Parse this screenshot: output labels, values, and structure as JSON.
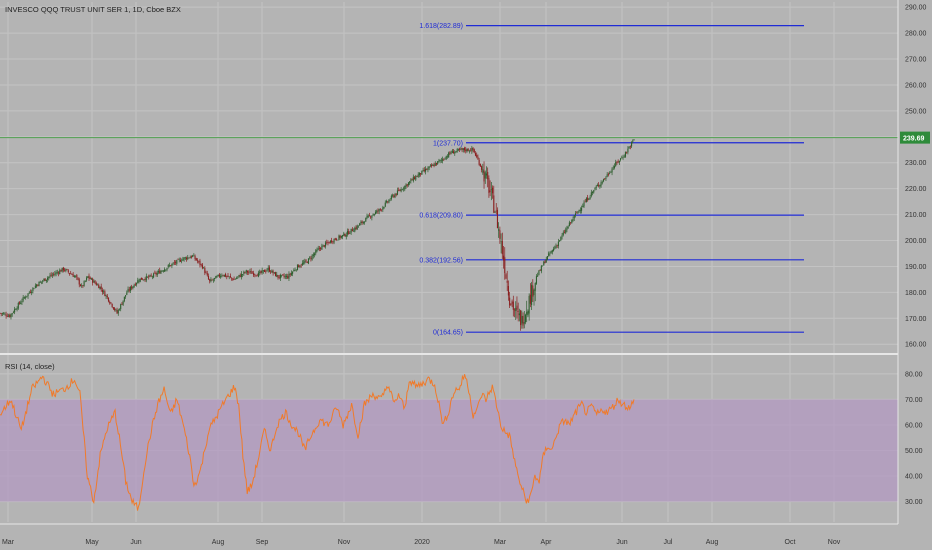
{
  "header": {
    "symbol_title": "INVESCO QQQ TRUST UNIT SER 1, 1D, Cboe BZX"
  },
  "colors": {
    "background": "#b4b4b4",
    "grid": "#c3c3c3",
    "candle_up": "#2e5e2e",
    "candle_down": "#8a1f1f",
    "fib_line": "#1f2bd6",
    "last_price_line": "#4f9f4f",
    "last_price_badge": "#2e8b3a",
    "rsi_line": "#f07a2a",
    "rsi_band": "#b39ac2",
    "axis_text": "#333333"
  },
  "chart_data": [
    {
      "type": "candlestick",
      "title": "INVESCO QQQ TRUST UNIT SER 1, 1D, Cboe BZX",
      "ylim": [
        157,
        292
      ],
      "y_ticks": [
        "160.00",
        "170.00",
        "180.00",
        "190.00",
        "200.00",
        "210.00",
        "220.00",
        "230.00",
        "240.00",
        "250.00",
        "260.00",
        "270.00",
        "280.00",
        "290.00"
      ],
      "y_tick_values": [
        160,
        170,
        180,
        190,
        200,
        210,
        220,
        230,
        240,
        250,
        260,
        270,
        280,
        290
      ],
      "x_ticks": [
        "Mar",
        "May",
        "Jun",
        "Aug",
        "Sep",
        "Nov",
        "2020",
        "Mar",
        "Apr",
        "Jun",
        "Jul",
        "Aug",
        "Oct",
        "Nov"
      ],
      "last_price": 239.69,
      "last_price_label": "239.69",
      "fib_levels": [
        {
          "label": "1.618(282.89)",
          "value": 282.89
        },
        {
          "label": "1(237.70)",
          "value": 237.7
        },
        {
          "label": "0.618(209.80)",
          "value": 209.8
        },
        {
          "label": "0.382(192.56)",
          "value": 192.56
        },
        {
          "label": "0(164.65)",
          "value": 164.65
        }
      ],
      "close_keypoints_by_bar": [
        [
          0,
          172
        ],
        [
          8,
          171
        ],
        [
          18,
          177
        ],
        [
          30,
          183
        ],
        [
          40,
          186
        ],
        [
          52,
          189
        ],
        [
          62,
          186
        ],
        [
          67,
          182
        ],
        [
          72,
          186
        ],
        [
          82,
          182
        ],
        [
          88,
          178
        ],
        [
          96,
          172
        ],
        [
          104,
          180
        ],
        [
          114,
          185
        ],
        [
          124,
          186
        ],
        [
          138,
          190
        ],
        [
          150,
          193
        ],
        [
          158,
          194
        ],
        [
          166,
          190
        ],
        [
          172,
          184
        ],
        [
          182,
          187
        ],
        [
          192,
          185
        ],
        [
          202,
          188
        ],
        [
          212,
          187
        ],
        [
          220,
          189
        ],
        [
          228,
          186
        ],
        [
          236,
          186
        ],
        [
          244,
          190
        ],
        [
          252,
          192
        ],
        [
          262,
          197
        ],
        [
          272,
          200
        ],
        [
          282,
          202
        ],
        [
          292,
          205
        ],
        [
          302,
          209
        ],
        [
          312,
          212
        ],
        [
          322,
          217
        ],
        [
          332,
          221
        ],
        [
          342,
          225
        ],
        [
          352,
          228
        ],
        [
          362,
          231
        ],
        [
          370,
          234
        ],
        [
          380,
          235
        ],
        [
          388,
          235
        ],
        [
          393,
          230
        ],
        [
          400,
          222
        ],
        [
          406,
          212
        ],
        [
          412,
          196
        ],
        [
          418,
          178
        ],
        [
          423,
          172
        ],
        [
          428,
          169
        ],
        [
          434,
          177
        ],
        [
          440,
          186
        ],
        [
          448,
          193
        ],
        [
          456,
          198
        ],
        [
          464,
          204
        ],
        [
          472,
          210
        ],
        [
          480,
          215
        ],
        [
          488,
          220
        ],
        [
          496,
          224
        ],
        [
          504,
          229
        ],
        [
          512,
          233
        ],
        [
          520,
          239
        ]
      ]
    },
    {
      "type": "line",
      "title": "RSI (14, close)",
      "ylim": [
        22,
        87
      ],
      "band": [
        30,
        70
      ],
      "y_ticks": [
        "30.00",
        "40.00",
        "50.00",
        "60.00",
        "70.00",
        "80.00"
      ],
      "y_tick_values": [
        30,
        40,
        50,
        60,
        70,
        80
      ],
      "keypoints_by_bar": [
        [
          0,
          64
        ],
        [
          10,
          70
        ],
        [
          20,
          58
        ],
        [
          30,
          74
        ],
        [
          40,
          79
        ],
        [
          50,
          72
        ],
        [
          60,
          74
        ],
        [
          70,
          78
        ],
        [
          75,
          72
        ],
        [
          82,
          40
        ],
        [
          88,
          30
        ],
        [
          94,
          48
        ],
        [
          100,
          58
        ],
        [
          108,
          65
        ],
        [
          112,
          55
        ],
        [
          118,
          38
        ],
        [
          124,
          30
        ],
        [
          130,
          27
        ],
        [
          136,
          45
        ],
        [
          142,
          58
        ],
        [
          148,
          68
        ],
        [
          154,
          74
        ],
        [
          160,
          64
        ],
        [
          166,
          70
        ],
        [
          172,
          60
        ],
        [
          178,
          48
        ],
        [
          182,
          36
        ],
        [
          188,
          42
        ],
        [
          196,
          58
        ],
        [
          204,
          64
        ],
        [
          212,
          70
        ],
        [
          220,
          75
        ],
        [
          224,
          68
        ],
        [
          228,
          48
        ],
        [
          232,
          34
        ],
        [
          236,
          36
        ],
        [
          242,
          46
        ],
        [
          248,
          58
        ],
        [
          254,
          50
        ],
        [
          260,
          60
        ],
        [
          268,
          65
        ],
        [
          274,
          60
        ],
        [
          280,
          57
        ],
        [
          286,
          50
        ],
        [
          292,
          56
        ],
        [
          300,
          62
        ],
        [
          308,
          60
        ],
        [
          316,
          67
        ],
        [
          322,
          60
        ],
        [
          330,
          68
        ],
        [
          336,
          56
        ],
        [
          342,
          68
        ],
        [
          350,
          72
        ],
        [
          358,
          70
        ],
        [
          364,
          76
        ],
        [
          370,
          68
        ],
        [
          374,
          72
        ],
        [
          380,
          66
        ],
        [
          384,
          78
        ],
        [
          390,
          75
        ],
        [
          396,
          76
        ],
        [
          402,
          78
        ],
        [
          408,
          76
        ],
        [
          412,
          68
        ],
        [
          416,
          60
        ],
        [
          420,
          64
        ],
        [
          426,
          73
        ],
        [
          432,
          75
        ],
        [
          436,
          80
        ],
        [
          440,
          74
        ],
        [
          444,
          64
        ],
        [
          448,
          66
        ],
        [
          452,
          72
        ],
        [
          456,
          70
        ],
        [
          462,
          75
        ],
        [
          466,
          68
        ],
        [
          470,
          60
        ],
        [
          474,
          57
        ],
        [
          478,
          56
        ],
        [
          482,
          48
        ],
        [
          486,
          40
        ],
        [
          490,
          35
        ],
        [
          494,
          30
        ],
        [
          498,
          32
        ],
        [
          502,
          40
        ],
        [
          506,
          38
        ],
        [
          510,
          48
        ],
        [
          514,
          52
        ],
        [
          518,
          50
        ],
        [
          522,
          56
        ],
        [
          526,
          60
        ],
        [
          530,
          62
        ],
        [
          534,
          60
        ],
        [
          538,
          63
        ],
        [
          542,
          66
        ],
        [
          546,
          68
        ],
        [
          550,
          65
        ],
        [
          556,
          67
        ],
        [
          560,
          64
        ],
        [
          566,
          66
        ],
        [
          570,
          65
        ],
        [
          575,
          67
        ],
        [
          580,
          70
        ],
        [
          585,
          68
        ],
        [
          590,
          67
        ],
        [
          595,
          69
        ]
      ]
    }
  ]
}
